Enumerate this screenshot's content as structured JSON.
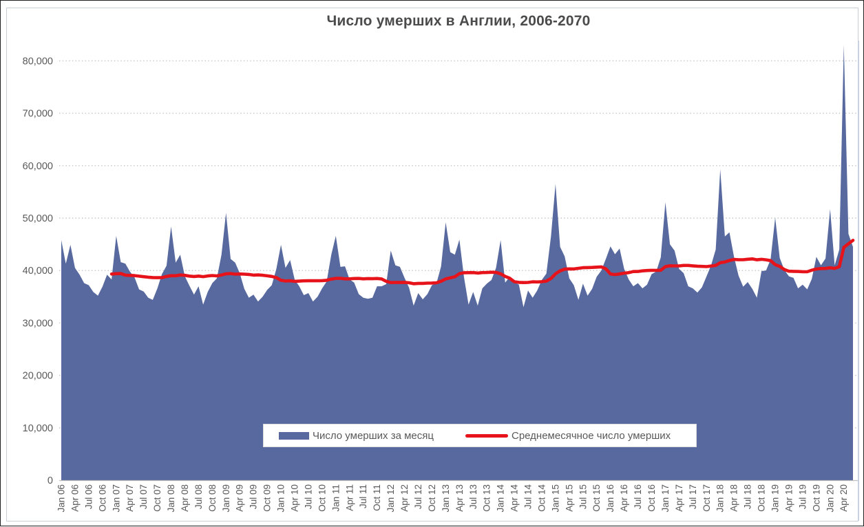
{
  "title": "Число умерших в Англии, 2006-2070",
  "legend": {
    "area_label": "Число умерших за месяц",
    "line_label": "Среднемесячное число умерших",
    "position": "bottom-center-overlay"
  },
  "colors": {
    "area": "#57699e",
    "line": "#e7131a",
    "grid": "#c6c6c6",
    "axis_line": "#bfbfbf",
    "axis_text": "#595959",
    "title_text": "#4b4b4b",
    "plot_right_border": "#c9d1e0",
    "background": "#ffffff"
  },
  "chart_data": {
    "type": "area",
    "title": "Число умерших в Англии, 2006-2070",
    "xlabel": "",
    "ylabel": "",
    "x_start_month": "Jan 06",
    "x_end_month": "Jun 20",
    "grid": "horizontal-dotted",
    "ylim": [
      0,
      85000
    ],
    "y_ticks": [
      0,
      10000,
      20000,
      30000,
      40000,
      50000,
      60000,
      70000,
      80000
    ],
    "y_tick_labels": [
      "0",
      "10,000",
      "20,000",
      "30,000",
      "40,000",
      "50,000",
      "60,000",
      "70,000",
      "80,000"
    ],
    "x_tick_labels": [
      "Jan 06",
      "Apr 06",
      "Jul 06",
      "Oct 06",
      "Jan 07",
      "Apr 07",
      "Jul 07",
      "Oct 07",
      "Jan 08",
      "Apr 08",
      "Jul 08",
      "Oct 08",
      "Jan 09",
      "Apr 09",
      "Jul 09",
      "Oct 09",
      "Jan 10",
      "Apr 10",
      "Jul 10",
      "Oct 10",
      "Jan 11",
      "Apr 11",
      "Jul 11",
      "Oct 11",
      "Jan 12",
      "Apr 12",
      "Jul 12",
      "Oct 12",
      "Jan 13",
      "Apr 13",
      "Jul 13",
      "Oct 13",
      "Jan 14",
      "Apr 14",
      "Jul 14",
      "Oct 14",
      "Jan 15",
      "Apr 15",
      "Jul 15",
      "Oct 15",
      "Jan 16",
      "Apr 16",
      "Jul 16",
      "Oct 16",
      "Jan 17",
      "Apr 17",
      "Jul 17",
      "Oct 17",
      "Jan 18",
      "Apr 18",
      "Jul 18",
      "Oct 18",
      "Jan 19",
      "Apr 19",
      "Jul 19",
      "Oct 19",
      "Jan 20",
      "Apr 20"
    ],
    "x_ticks_every_n_months": 3,
    "series": [
      {
        "name": "Число умерших за месяц",
        "type": "area",
        "values": [
          45800,
          41300,
          44900,
          40500,
          39200,
          37600,
          37200,
          35900,
          35200,
          36900,
          39200,
          38300,
          46600,
          41600,
          41300,
          39800,
          38700,
          36400,
          36000,
          34800,
          34400,
          36600,
          39300,
          40900,
          48400,
          41500,
          43000,
          38900,
          37100,
          35400,
          37000,
          33500,
          35900,
          37600,
          38500,
          43000,
          51000,
          42200,
          41500,
          39500,
          36500,
          34800,
          35400,
          34100,
          35000,
          36300,
          37200,
          40300,
          44900,
          40500,
          42000,
          38300,
          37000,
          35300,
          35700,
          34100,
          35000,
          36600,
          37900,
          43000,
          46600,
          40700,
          40800,
          38300,
          37700,
          35500,
          34800,
          34600,
          34800,
          37000,
          37000,
          37400,
          43800,
          41000,
          40700,
          38600,
          36700,
          33300,
          35700,
          34500,
          35500,
          37200,
          37600,
          40800,
          49200,
          43500,
          43000,
          45900,
          38700,
          33500,
          35900,
          33300,
          36600,
          37500,
          38200,
          40500,
          45800,
          37700,
          38800,
          37800,
          37300,
          33000,
          36200,
          34800,
          36200,
          38200,
          39400,
          46500,
          56500,
          44500,
          42700,
          38500,
          37200,
          34400,
          37500,
          35200,
          36500,
          38800,
          40000,
          42200,
          44600,
          43100,
          44200,
          40300,
          38300,
          37000,
          37600,
          36600,
          37300,
          39300,
          39800,
          42500,
          53000,
          45000,
          43800,
          40300,
          39500,
          37000,
          36600,
          35800,
          36800,
          38900,
          41000,
          44000,
          59300,
          46500,
          47300,
          42600,
          39000,
          36900,
          37800,
          36500,
          34800,
          39900,
          40000,
          42100,
          50100,
          42400,
          40100,
          38900,
          38600,
          36600,
          37300,
          36400,
          38400,
          42600,
          41000,
          42300,
          51700,
          41000,
          44000,
          83000,
          47000,
          44500
        ]
      },
      {
        "name": "Среднемесячное число умерших",
        "type": "line",
        "derived": "trailing-12-month-moving-average-of-series-0",
        "window": 12,
        "start_index": 11
      }
    ]
  }
}
